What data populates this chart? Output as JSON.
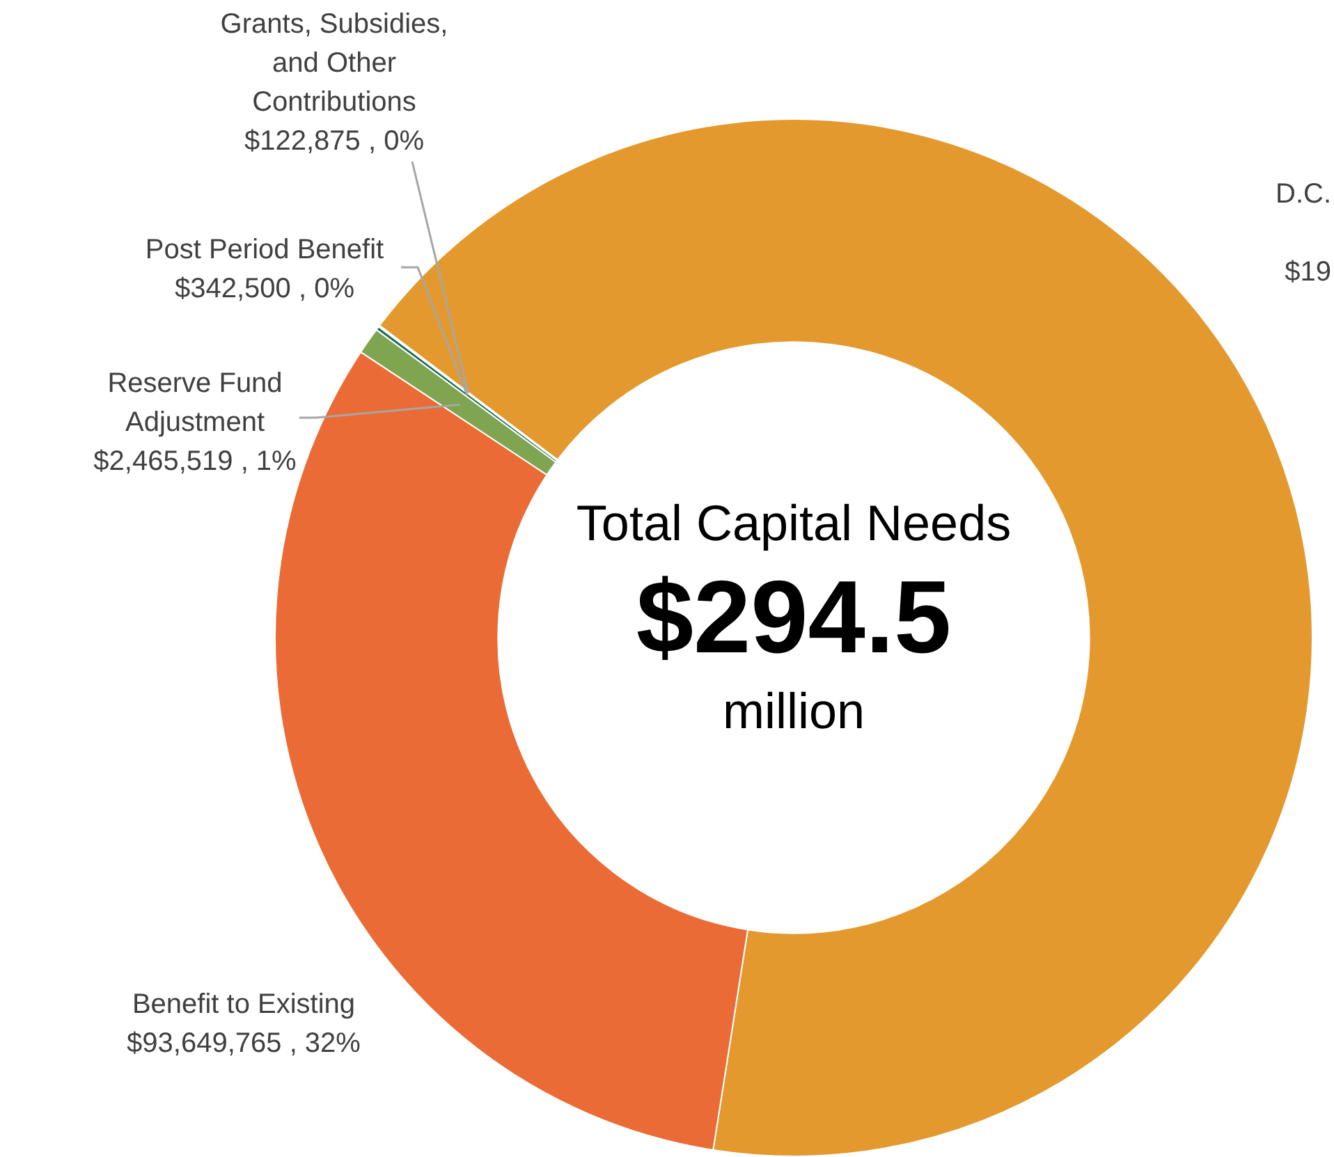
{
  "chart_data": {
    "type": "donut",
    "categories": [
      "D.C.",
      "Benefit to Existing",
      "Reserve Fund Adjustment",
      "Post Period Benefit",
      "Grants, Subsidies, and Other Contributions"
    ],
    "values": [
      197919341,
      93649765,
      2465519,
      342500,
      122875
    ],
    "colors": [
      "#e3992e",
      "#ea6b35",
      "#7fa550",
      "#1b6e5e",
      "#a9cbe0"
    ],
    "value_labels": [
      null,
      "$93,649,765 , 32%",
      "$2,465,519 , 1%",
      "$342,500 , 0%",
      "$122,875 , 0%"
    ],
    "annotations": [
      "Total Capital Needs",
      "$294.5",
      "million",
      "$19"
    ]
  }
}
